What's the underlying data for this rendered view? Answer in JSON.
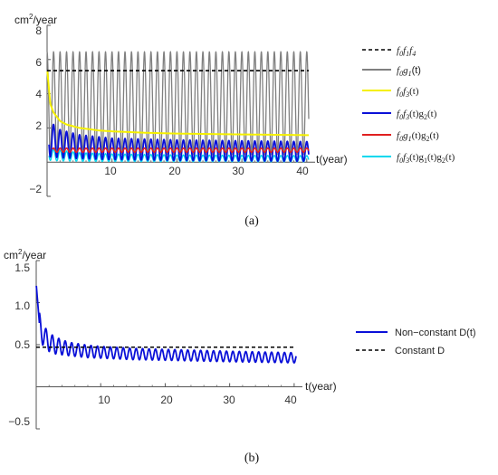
{
  "chart_data": [
    {
      "panel": "(a)",
      "type": "line",
      "ylabel": "cm²/year",
      "xlabel": "t(year)",
      "xlim": [
        0,
        41
      ],
      "ylim": [
        -2,
        8
      ],
      "xticks": [
        10,
        20,
        30,
        40
      ],
      "yticks": [
        -2,
        2,
        4,
        6,
        8
      ],
      "grid": false,
      "legend_position": "right",
      "colors": {
        "f0f1f4": "#000000",
        "f0g1": "#808080",
        "f0f3": "#f5f000",
        "f0f3g2": "#0a10d8",
        "f0g1g2": "#e02020",
        "f0f3g1g2": "#00d8ee"
      },
      "series": [
        {
          "key": "f0f1f4",
          "name": "f0f1f4",
          "style": "dashed",
          "constant": 5.35
        },
        {
          "key": "f0g1",
          "name": "f0g1(t)",
          "style": "solid",
          "oscillation": {
            "mean": 3.45,
            "amplitude": 3.0,
            "period_years": 1
          }
        },
        {
          "key": "f0f3",
          "name": "f0f3(t)",
          "style": "solid",
          "decay": {
            "t": [
              0.05,
              0.5,
              1,
              2,
              3,
              5,
              8,
              10,
              15,
              20,
              30,
              40
            ],
            "y": [
              5.3,
              3.4,
              2.9,
              2.4,
              2.2,
              2.0,
              1.85,
              1.8,
              1.72,
              1.67,
              1.62,
              1.58
            ]
          }
        },
        {
          "key": "f0f3g2",
          "name": "f0f3(t)g2(t)",
          "style": "solid",
          "envelope": {
            "t": [
              0.5,
              1,
              2,
              5,
              10,
              20,
              40
            ],
            "max": [
              2.4,
              2.2,
              1.9,
              1.6,
              1.4,
              1.3,
              1.2
            ],
            "min": [
              0.3,
              0.3,
              0.25,
              0.2,
              0.15,
              0.1,
              0.05
            ]
          }
        },
        {
          "key": "f0g1g2",
          "name": "f0g1(t)g2(t)",
          "style": "solid",
          "oscillation": {
            "mean": 0.7,
            "amplitude": 0.12,
            "period_years": 1
          }
        },
        {
          "key": "f0f3g1g2",
          "name": "f0f3(t)g1(t)g2(t)",
          "style": "solid",
          "envelope": {
            "t": [
              0.5,
              1,
              5,
              10,
              20,
              40
            ],
            "max": [
              0.9,
              0.75,
              0.55,
              0.48,
              0.42,
              0.38
            ],
            "min": [
              0.1,
              0.08,
              0.05,
              0.04,
              0.03,
              0.02
            ]
          }
        }
      ]
    },
    {
      "panel": "(b)",
      "type": "line",
      "ylabel": "cm²/year",
      "xlabel": "t(year)",
      "xlim": [
        0,
        41
      ],
      "ylim": [
        -0.5,
        1.5
      ],
      "xticks": [
        10,
        20,
        30,
        40
      ],
      "yticks": [
        -0.5,
        0.5,
        1.0,
        1.5
      ],
      "grid": false,
      "legend_position": "right",
      "colors": {
        "nonconst": "#0a10d8",
        "const": "#000000"
      },
      "series": [
        {
          "key": "nonconst",
          "name": "Non−constant D(t)",
          "style": "solid",
          "mean": {
            "t": [
              0.02,
              0.5,
              1,
              2,
              3,
              5,
              8,
              10,
              15,
              20,
              30,
              40
            ],
            "y": [
              1.2,
              0.75,
              0.62,
              0.53,
              0.49,
              0.45,
              0.42,
              0.41,
              0.39,
              0.38,
              0.36,
              0.345
            ]
          },
          "amplitude": {
            "t": [
              0.5,
              2,
              5,
              10,
              20,
              40
            ],
            "y": [
              0.13,
              0.11,
              0.08,
              0.07,
              0.065,
              0.06
            ]
          },
          "period_years": 1
        },
        {
          "key": "const",
          "name": "Constant D",
          "style": "dashed",
          "constant": 0.47
        }
      ]
    }
  ],
  "panel_a": {
    "ylabel": "cm",
    "ylabel_sup": "2",
    "ylabel_rest": "/year",
    "xlabel": "t(year)",
    "yticks": [
      "8",
      "6",
      "4",
      "2",
      "−2"
    ],
    "xticks": [
      "10",
      "20",
      "30",
      "40"
    ],
    "caption": "(a)",
    "legend": [
      {
        "f": "f",
        "s1": "0",
        "g": "f",
        "s2": "1",
        "h": "f",
        "s3": "4",
        "tail": ""
      },
      {
        "f": "f",
        "s1": "0",
        "g": "g",
        "s2": "1",
        "h": "",
        "s3": "",
        "tail": "(t)"
      },
      {
        "f": "f",
        "s1": "0",
        "g": "f",
        "s2": "3",
        "h": "",
        "s3": "",
        "tail": "(t)"
      },
      {
        "f": "f",
        "s1": "0",
        "g": "f",
        "s2": "3",
        "h": "",
        "s3": "",
        "tail": "(t)g",
        "s4": "2",
        "tail2": "(t)"
      },
      {
        "f": "f",
        "s1": "0",
        "g": "g",
        "s2": "1",
        "h": "",
        "s3": "",
        "tail": "(t)g",
        "s4": "2",
        "tail2": "(t)"
      },
      {
        "f": "f",
        "s1": "0",
        "g": "f",
        "s2": "3",
        "h": "",
        "s3": "",
        "tail": "(t)g",
        "s4": "1",
        "tail2": "(t)g",
        "s5": "2",
        "tail3": "(t)"
      }
    ]
  },
  "panel_b": {
    "ylabel": "cm",
    "ylabel_sup": "2",
    "ylabel_rest": "/year",
    "xlabel": "t(year)",
    "yticks": [
      "1.5",
      "1.0",
      "0.5",
      "−0.5"
    ],
    "xticks": [
      "10",
      "20",
      "30",
      "40"
    ],
    "caption": "(b)",
    "legend": [
      "Non−constant D(t)",
      "Constant D"
    ]
  }
}
